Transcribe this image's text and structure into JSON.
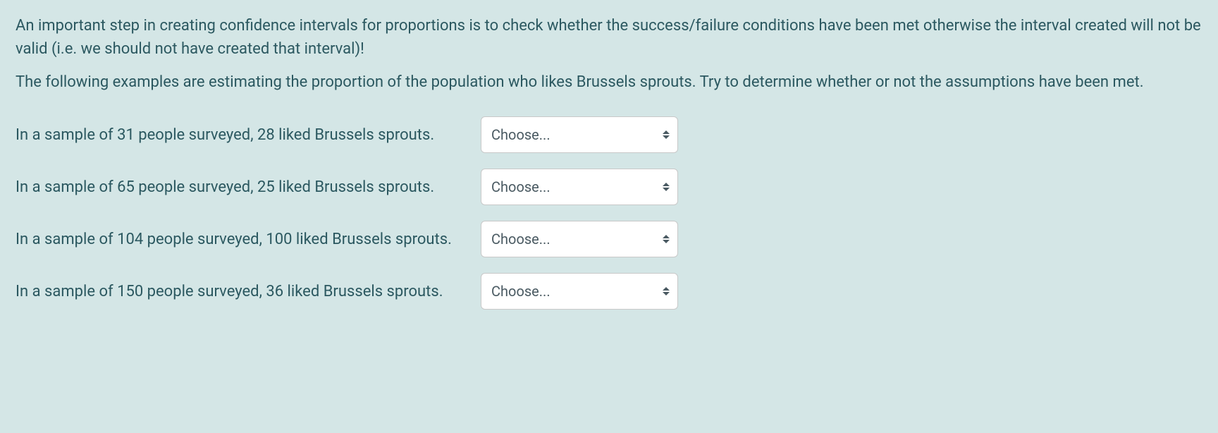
{
  "intro": {
    "paragraph1": "An important step in creating confidence intervals for proportions is to check whether the success/failure conditions have been met otherwise the interval created will not be valid (i.e. we should not have created that interval)!",
    "paragraph2": "The following examples are estimating the proportion of the population who likes Brussels sprouts. Try to determine whether or not the assumptions have been met."
  },
  "questions": [
    {
      "text": "In a sample of 31 people surveyed, 28 liked Brussels sprouts.",
      "placeholder": "Choose..."
    },
    {
      "text": "In a sample of 65 people surveyed, 25 liked Brussels sprouts.",
      "placeholder": "Choose..."
    },
    {
      "text": "In a sample of 104 people surveyed, 100 liked Brussels sprouts.",
      "placeholder": "Choose..."
    },
    {
      "text": "In a sample of 150 people surveyed, 36 liked Brussels sprouts.",
      "placeholder": "Choose..."
    }
  ],
  "styling": {
    "background_color": "#d4e6e6",
    "text_color": "#2b5860",
    "select_background": "#ffffff",
    "select_border": "#c8c8c8",
    "select_text_color": "#4a5a62",
    "font_size_body": 22,
    "font_size_select": 20,
    "select_border_radius": 6
  }
}
